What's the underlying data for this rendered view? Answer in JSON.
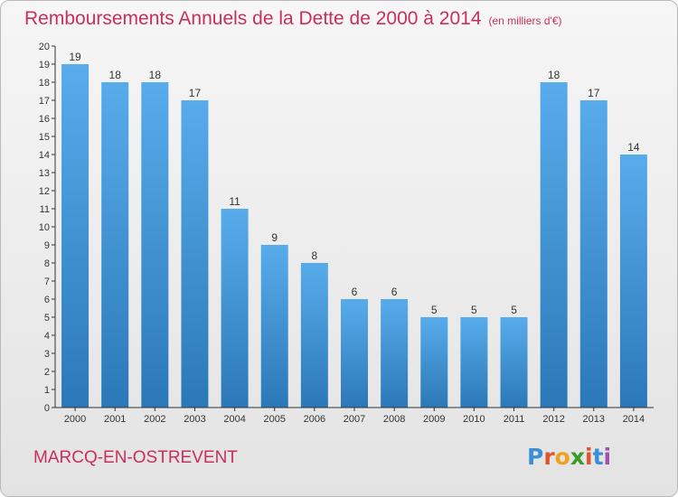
{
  "title": "Remboursements Annuels de la Dette de 2000 à 2014",
  "title_unit": "(en milliers d'€)",
  "commune": "MARCQ-EN-OSTREVENT",
  "logo": {
    "text": "Proxiti",
    "letter_colors": [
      "#3c8fd6",
      "#e0542a",
      "#f0a020",
      "#3c9a2a",
      "#e0542a",
      "#3c8fd6",
      "#a050b0"
    ]
  },
  "colors": {
    "bar": "#4ea3e3",
    "bar_dark": "#2b78b8",
    "title": "#c8305a",
    "axis": "#333333"
  },
  "chart_data": {
    "type": "bar",
    "categories": [
      "2000",
      "2001",
      "2002",
      "2003",
      "2004",
      "2005",
      "2006",
      "2007",
      "2008",
      "2009",
      "2010",
      "2011",
      "2012",
      "2013",
      "2014"
    ],
    "values": [
      19,
      18,
      18,
      17,
      11,
      9,
      8,
      6,
      6,
      5,
      5,
      5,
      18,
      17,
      14
    ],
    "ylim": [
      0,
      20
    ],
    "yticks": [
      0,
      1,
      2,
      3,
      4,
      5,
      6,
      7,
      8,
      9,
      10,
      11,
      12,
      13,
      14,
      15,
      16,
      17,
      18,
      19,
      20
    ],
    "grid": false,
    "xlabel": "",
    "ylabel": ""
  }
}
